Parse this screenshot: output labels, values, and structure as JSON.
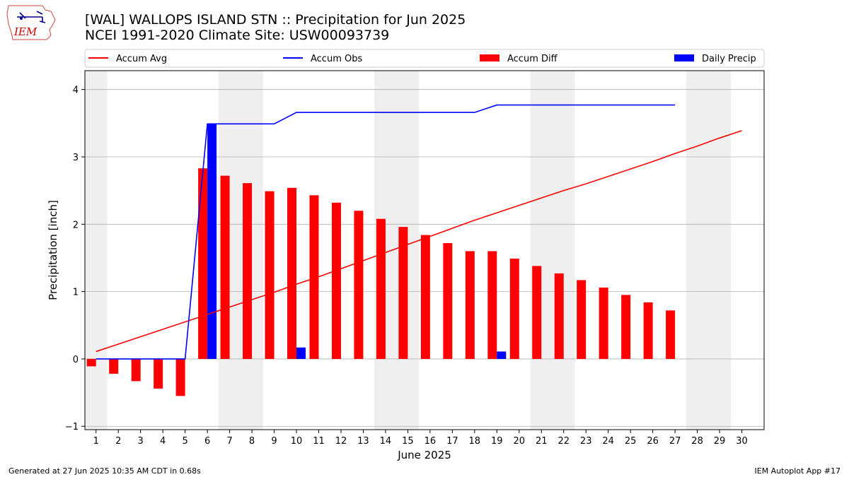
{
  "header": {
    "title": "[WAL] WALLOPS ISLAND STN :: Precipitation for Jun 2025",
    "subtitle": "NCEI 1991-2020 Climate Site: USW00093739",
    "logo_text": "IEM"
  },
  "footer": {
    "generated": "Generated at 27 Jun 2025 10:35 AM CDT in 0.68s",
    "app": "IEM Autoplot App #17"
  },
  "colors": {
    "avg": "#ff0000",
    "obs": "#0000ff",
    "diff": "#ff0000",
    "daily": "#0000ff",
    "weekend_band": "#efefef",
    "grid": "#b0b0b0"
  },
  "chart_data": {
    "type": "bar",
    "xlabel": "June 2025",
    "ylabel": "Precipitation [inch]",
    "xlim": [
      0.5,
      31
    ],
    "ylim": [
      -1.05,
      4.28
    ],
    "yticks": [
      -1,
      0,
      1,
      2,
      3,
      4
    ],
    "x": [
      1,
      2,
      3,
      4,
      5,
      6,
      7,
      8,
      9,
      10,
      11,
      12,
      13,
      14,
      15,
      16,
      17,
      18,
      19,
      20,
      21,
      22,
      23,
      24,
      25,
      26,
      27,
      28,
      29,
      30
    ],
    "grid": "horizontal",
    "legend_position": "top",
    "weekend_bands": [
      [
        0.5,
        1.5
      ],
      [
        6.5,
        8.5
      ],
      [
        13.5,
        15.5
      ],
      [
        20.5,
        22.5
      ],
      [
        27.5,
        29.5
      ]
    ],
    "legend": [
      {
        "label": "Accum Avg",
        "kind": "line",
        "color": "#ff0000"
      },
      {
        "label": "Accum Obs",
        "kind": "line",
        "color": "#0000ff"
      },
      {
        "label": "Accum Diff",
        "kind": "bar",
        "color": "#ff0000"
      },
      {
        "label": "Daily Precip",
        "kind": "bar",
        "color": "#0000ff"
      }
    ],
    "series": [
      {
        "name": "Accum Avg",
        "type": "line",
        "x": [
          1,
          2,
          3,
          4,
          5,
          6,
          7,
          8,
          9,
          10,
          11,
          12,
          13,
          14,
          15,
          16,
          17,
          18,
          19,
          20,
          21,
          22,
          23,
          24,
          25,
          26,
          27,
          28,
          29,
          30
        ],
        "values": [
          0.11,
          0.22,
          0.33,
          0.44,
          0.55,
          0.66,
          0.77,
          0.88,
          0.99,
          1.11,
          1.22,
          1.34,
          1.46,
          1.58,
          1.7,
          1.82,
          1.94,
          2.06,
          2.17,
          2.28,
          2.39,
          2.5,
          2.6,
          2.71,
          2.82,
          2.93,
          3.05,
          3.16,
          3.28,
          3.39
        ]
      },
      {
        "name": "Accum Obs",
        "type": "line",
        "x": [
          1,
          2,
          3,
          4,
          5,
          6,
          7,
          8,
          9,
          10,
          11,
          12,
          13,
          14,
          15,
          16,
          17,
          18,
          19,
          20,
          21,
          22,
          23,
          24,
          25,
          26,
          27
        ],
        "values": [
          0,
          0,
          0,
          0,
          0,
          3.49,
          3.49,
          3.49,
          3.49,
          3.66,
          3.66,
          3.66,
          3.66,
          3.66,
          3.66,
          3.66,
          3.66,
          3.66,
          3.77,
          3.77,
          3.77,
          3.77,
          3.77,
          3.77,
          3.77,
          3.77,
          3.77
        ]
      },
      {
        "name": "Accum Diff",
        "type": "bar",
        "x": [
          1,
          2,
          3,
          4,
          5,
          6,
          7,
          8,
          9,
          10,
          11,
          12,
          13,
          14,
          15,
          16,
          17,
          18,
          19,
          20,
          21,
          22,
          23,
          24,
          25,
          26,
          27
        ],
        "values": [
          -0.11,
          -0.22,
          -0.33,
          -0.44,
          -0.55,
          2.83,
          2.72,
          2.61,
          2.49,
          2.54,
          2.43,
          2.32,
          2.2,
          2.08,
          1.96,
          1.84,
          1.72,
          1.6,
          1.6,
          1.49,
          1.38,
          1.27,
          1.17,
          1.06,
          0.95,
          0.84,
          0.72
        ]
      },
      {
        "name": "Daily Precip",
        "type": "bar",
        "x": [
          6,
          10,
          19
        ],
        "values": [
          3.49,
          0.17,
          0.11
        ]
      }
    ]
  }
}
